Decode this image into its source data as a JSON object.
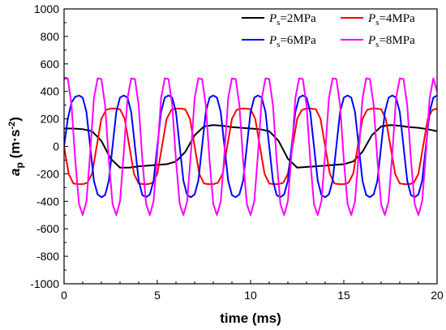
{
  "chart_data": {
    "type": "line",
    "xlabel": "time (ms)",
    "ylabel": "a",
    "ylabel_sub": "p",
    "ylabel_unit": " (m·s",
    "ylabel_unit_sup": "-2",
    "ylabel_unit_close": ")",
    "xlim": [
      0,
      20
    ],
    "ylim": [
      -1000,
      1000
    ],
    "x_ticks": [
      0,
      5,
      10,
      15,
      20
    ],
    "y_ticks": [
      -1000,
      -800,
      -600,
      -400,
      -200,
      0,
      200,
      400,
      600,
      800,
      1000
    ],
    "grid": false,
    "legend_position": "top",
    "series": [
      {
        "name": "Ps=2MPa",
        "legend_var": "P",
        "legend_sub": "s",
        "legend_value": "=2MPa",
        "color": "#000000",
        "x": [
          0,
          0.5,
          1.0,
          1.5,
          2.0,
          2.5,
          3.0,
          3.5,
          4.0,
          4.5,
          5.0,
          5.5,
          6.0,
          6.5,
          7.0,
          7.5,
          8.0,
          8.5,
          9.0,
          9.5,
          10.0,
          10.5,
          11.0,
          11.5,
          12.0,
          12.5,
          13.0,
          13.5,
          14.0,
          14.5,
          15.0,
          15.5,
          16.0,
          16.5,
          17.0,
          17.5,
          18.0,
          18.5,
          19.0,
          19.5,
          20.0
        ],
        "y": [
          130,
          130,
          125,
          110,
          40,
          -90,
          -155,
          -155,
          -145,
          -140,
          -135,
          -130,
          -110,
          -40,
          80,
          145,
          155,
          150,
          140,
          135,
          130,
          125,
          110,
          40,
          -90,
          -155,
          -150,
          -145,
          -140,
          -135,
          -130,
          -110,
          -40,
          80,
          145,
          155,
          150,
          140,
          135,
          125,
          110
        ]
      },
      {
        "name": "Ps=4MPa",
        "legend_var": "P",
        "legend_sub": "s",
        "legend_value": "=4MPa",
        "color": "#ff0000",
        "x": [
          0,
          0.25,
          0.5,
          0.75,
          1.0,
          1.25,
          1.5,
          1.75,
          2.0,
          2.25,
          2.5,
          2.75,
          3.0,
          3.25,
          3.5,
          3.75,
          4.0,
          4.25,
          4.5,
          4.75,
          5.0,
          5.25,
          5.5,
          5.75,
          6.0,
          6.25,
          6.5,
          6.75,
          7.0,
          7.25,
          7.5,
          7.75,
          8.0,
          8.25,
          8.5,
          8.75,
          9.0,
          9.25,
          9.5,
          9.75,
          10.0,
          10.25,
          10.5,
          10.75,
          11.0,
          11.25,
          11.5,
          11.75,
          12.0,
          12.25,
          12.5,
          12.75,
          13.0,
          13.25,
          13.5,
          13.75,
          14.0,
          14.25,
          14.5,
          14.75,
          15.0,
          15.25,
          15.5,
          15.75,
          16.0,
          16.25,
          16.5,
          16.75,
          17.0,
          17.25,
          17.5,
          17.75,
          18.0,
          18.25,
          18.5,
          18.75,
          19.0,
          19.25,
          19.5,
          19.75,
          20.0
        ],
        "y": [
          0,
          -200,
          -270,
          -275,
          -275,
          -265,
          -200,
          0,
          200,
          265,
          275,
          275,
          270,
          200,
          0,
          -200,
          -270,
          -275,
          -275,
          -265,
          -200,
          0,
          200,
          265,
          275,
          275,
          270,
          200,
          0,
          -200,
          -270,
          -275,
          -275,
          -265,
          -200,
          0,
          200,
          265,
          275,
          275,
          270,
          200,
          0,
          -200,
          -270,
          -275,
          -275,
          -265,
          -200,
          0,
          200,
          265,
          275,
          275,
          270,
          200,
          0,
          -200,
          -270,
          -275,
          -275,
          -265,
          -200,
          0,
          200,
          265,
          275,
          275,
          270,
          200,
          0,
          -200,
          -270,
          -275,
          -275,
          -265,
          -200,
          0,
          200,
          265,
          275
        ]
      },
      {
        "name": "Ps=6MPa",
        "legend_var": "P",
        "legend_sub": "s",
        "legend_value": "=6MPa",
        "color": "#0000ff",
        "x": [
          0,
          0.2,
          0.4,
          0.6,
          0.8,
          1.0,
          1.2,
          1.4,
          1.6,
          1.8,
          2.0,
          2.2,
          2.4,
          2.6,
          2.8,
          3.0,
          3.2,
          3.4,
          3.6,
          3.8,
          4.0,
          4.2,
          4.4,
          4.6,
          4.8,
          5.0,
          5.2,
          5.4,
          5.6,
          5.8,
          6.0,
          6.2,
          6.4,
          6.6,
          6.8,
          7.0,
          7.2,
          7.4,
          7.6,
          7.8,
          8.0,
          8.2,
          8.4,
          8.6,
          8.8,
          9.0,
          9.2,
          9.4,
          9.6,
          9.8,
          10.0,
          10.2,
          10.4,
          10.6,
          10.8,
          11.0,
          11.2,
          11.4,
          11.6,
          11.8,
          12.0,
          12.2,
          12.4,
          12.6,
          12.8,
          13.0,
          13.2,
          13.4,
          13.6,
          13.8,
          14.0,
          14.2,
          14.4,
          14.6,
          14.8,
          15.0,
          15.2,
          15.4,
          15.6,
          15.8,
          16.0,
          16.2,
          16.4,
          16.6,
          16.8,
          17.0,
          17.2,
          17.4,
          17.6,
          17.8,
          18.0,
          18.2,
          18.4,
          18.6,
          18.8,
          19.0,
          19.2,
          19.4,
          19.6,
          19.8,
          20.0
        ],
        "y": [
          0,
          200,
          320,
          360,
          370,
          355,
          250,
          0,
          -250,
          -350,
          -370,
          -355,
          -250,
          0,
          250,
          355,
          370,
          355,
          250,
          0,
          -250,
          -355,
          -370,
          -350,
          -250,
          0,
          250,
          355,
          370,
          355,
          250,
          0,
          -250,
          -355,
          -370,
          -350,
          -250,
          0,
          250,
          355,
          370,
          355,
          250,
          0,
          -250,
          -355,
          -370,
          -350,
          -250,
          0,
          250,
          355,
          370,
          355,
          250,
          0,
          -250,
          -355,
          -370,
          -350,
          -250,
          0,
          250,
          355,
          370,
          355,
          250,
          0,
          -250,
          -355,
          -370,
          -350,
          -250,
          0,
          250,
          355,
          370,
          355,
          250,
          0,
          -250,
          -355,
          -370,
          -350,
          -250,
          0,
          250,
          355,
          370,
          355,
          250,
          0,
          -250,
          -355,
          -370,
          -350,
          -250,
          0,
          250,
          355,
          370
        ]
      },
      {
        "name": "Ps=8MPa",
        "legend_var": "P",
        "legend_sub": "s",
        "legend_value": "=8MPa",
        "color": "#ff00ff",
        "x": [
          0,
          0.2,
          0.4,
          0.6,
          0.8,
          1.0,
          1.2,
          1.4,
          1.6,
          1.8,
          2.0,
          2.2,
          2.4,
          2.6,
          2.8,
          3.0,
          3.2,
          3.4,
          3.6,
          3.8,
          4.0,
          4.2,
          4.4,
          4.6,
          4.8,
          5.0,
          5.2,
          5.4,
          5.6,
          5.8,
          6.0,
          6.2,
          6.4,
          6.6,
          6.8,
          7.0,
          7.2,
          7.4,
          7.6,
          7.8,
          8.0,
          8.2,
          8.4,
          8.6,
          8.8,
          9.0,
          9.2,
          9.4,
          9.6,
          9.8,
          10.0,
          10.2,
          10.4,
          10.6,
          10.8,
          11.0,
          11.2,
          11.4,
          11.6,
          11.8,
          12.0,
          12.2,
          12.4,
          12.6,
          12.8,
          13.0,
          13.2,
          13.4,
          13.6,
          13.8,
          14.0,
          14.2,
          14.4,
          14.6,
          14.8,
          15.0,
          15.2,
          15.4,
          15.6,
          15.8,
          16.0,
          16.2,
          16.4,
          16.6,
          16.8,
          17.0,
          17.2,
          17.4,
          17.6,
          17.8,
          18.0,
          18.2,
          18.4,
          18.6,
          18.8,
          19.0,
          19.2,
          19.4,
          19.6,
          19.8,
          20.0
        ],
        "y": [
          490,
          495,
          300,
          -100,
          -420,
          -500,
          -400,
          -50,
          350,
          495,
          490,
          300,
          -100,
          -420,
          -500,
          -400,
          -50,
          350,
          495,
          490,
          300,
          -100,
          -420,
          -500,
          -400,
          -50,
          350,
          495,
          490,
          300,
          -100,
          -420,
          -500,
          -400,
          -50,
          350,
          495,
          490,
          300,
          -100,
          -420,
          -500,
          -400,
          -50,
          350,
          495,
          490,
          300,
          -100,
          -420,
          -500,
          -400,
          -50,
          350,
          495,
          490,
          300,
          -100,
          -420,
          -500,
          -400,
          -50,
          350,
          495,
          490,
          300,
          -100,
          -420,
          -500,
          -400,
          -50,
          350,
          495,
          490,
          300,
          -100,
          -420,
          -500,
          -400,
          -50,
          350,
          495,
          490,
          300,
          -100,
          -420,
          -500,
          -400,
          -50,
          350,
          495,
          490,
          300,
          -100,
          -420,
          -500,
          -400,
          -50,
          350,
          495,
          400
        ]
      }
    ]
  }
}
